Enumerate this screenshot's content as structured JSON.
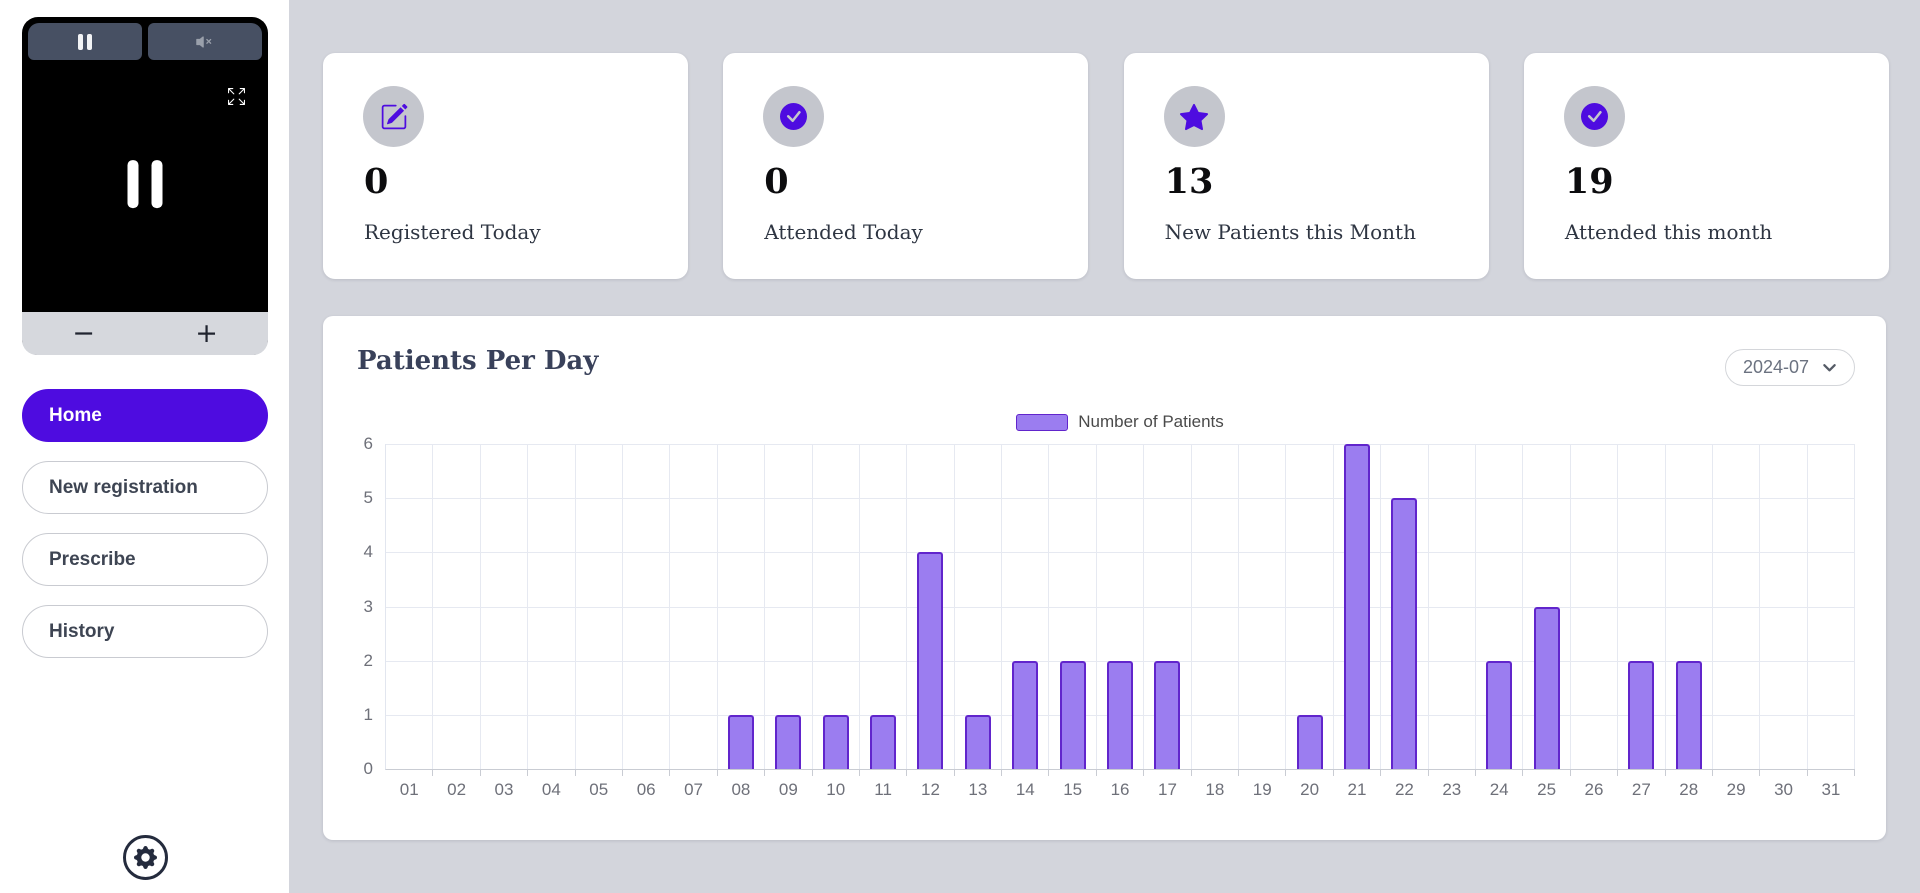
{
  "colors": {
    "accent": "#4e0ce0",
    "bar_fill": "#9b7df0",
    "bar_border": "#6125cc",
    "sidebar_bg": "#ffffff",
    "page_bg": "#d3d5dc"
  },
  "sidebar": {
    "video_player": {
      "zoom_out_label": "−",
      "zoom_in_label": "+"
    },
    "nav": [
      {
        "label": "Home",
        "active": true
      },
      {
        "label": "New registration",
        "active": false
      },
      {
        "label": "Prescribe",
        "active": false
      },
      {
        "label": "History",
        "active": false
      }
    ]
  },
  "stats": {
    "cards": [
      {
        "icon": "edit-icon",
        "value": "0",
        "label": "Registered Today"
      },
      {
        "icon": "check-circle-icon",
        "value": "0",
        "label": "Attended Today"
      },
      {
        "icon": "star-icon",
        "value": "13",
        "label": "New Patients this Month"
      },
      {
        "icon": "check-circle-icon",
        "value": "19",
        "label": "Attended this month"
      }
    ]
  },
  "chart": {
    "title": "Patients Per Day",
    "month_selector_value": "2024-07"
  },
  "chart_data": {
    "type": "bar",
    "title": "Patients Per Day",
    "series_name": "Number of Patients",
    "categories": [
      "01",
      "02",
      "03",
      "04",
      "05",
      "06",
      "07",
      "08",
      "09",
      "10",
      "11",
      "12",
      "13",
      "14",
      "15",
      "16",
      "17",
      "18",
      "19",
      "20",
      "21",
      "22",
      "23",
      "24",
      "25",
      "26",
      "27",
      "28",
      "29",
      "30",
      "31"
    ],
    "values": [
      0,
      0,
      0,
      0,
      0,
      0,
      0,
      1,
      1,
      1,
      1,
      4,
      1,
      2,
      2,
      2,
      2,
      0,
      0,
      1,
      6,
      5,
      0,
      2,
      3,
      0,
      2,
      2,
      0,
      0,
      0
    ],
    "xlabel": "",
    "ylabel": "",
    "ylim": [
      0,
      6
    ],
    "ytick_step": 1,
    "grid": true,
    "legend_position": "top-center"
  }
}
